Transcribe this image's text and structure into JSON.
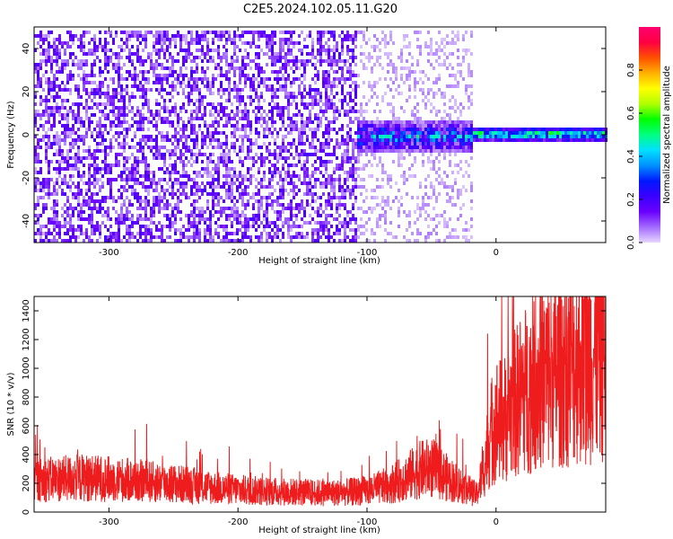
{
  "title": "C2E5.2024.102.05.11.G20",
  "colors": {
    "snr_line": "#ee1c1c",
    "axis": "#000000",
    "background": "#ffffff"
  },
  "chart_data": [
    {
      "type": "heatmap",
      "xlabel": "Height of straight line (km)",
      "ylabel": "Frequency (Hz)",
      "xlim": [
        -358,
        85
      ],
      "ylim": [
        -50,
        50
      ],
      "xticks": [
        -300,
        -200,
        -100,
        0
      ],
      "yticks": [
        -40,
        -20,
        0,
        20,
        40
      ],
      "colorbar": {
        "label": "Normalized spectral amplitude",
        "range": [
          0,
          1
        ],
        "ticks": [
          "0.0",
          "0.2",
          "0.4",
          "0.6",
          "0.8"
        ],
        "colormap": [
          "#e6d6ff",
          "#a46bff",
          "#6a00ff",
          "#3a00ff",
          "#0018ff",
          "#0090ff",
          "#00e0ff",
          "#00ff80",
          "#00ff00",
          "#b0ff00",
          "#ffff00",
          "#ffb000",
          "#ff5000",
          "#ff0040",
          "#ff0070"
        ]
      },
      "regions": [
        {
          "x_range": [
            -358,
            -108
          ],
          "f_range": [
            -50,
            50
          ],
          "description_level": "broadband",
          "amplitude": 0.08
        },
        {
          "x_range": [
            -108,
            -20
          ],
          "f_range": [
            -50,
            50
          ],
          "description_level": "sparse",
          "amplitude": 0.03
        },
        {
          "x_range": [
            -108,
            -20
          ],
          "f_range": [
            -7,
            8
          ],
          "description_level": "band",
          "amplitude": 0.3
        },
        {
          "x_range": [
            -20,
            85
          ],
          "f_range": [
            -2,
            4
          ],
          "description_level": "narrow-band",
          "amplitude": 0.5
        }
      ],
      "grid": false
    },
    {
      "type": "line",
      "xlabel": "Height of straight line (km)",
      "ylabel": "SNR (10 * v/v)",
      "xlim": [
        -358,
        85
      ],
      "ylim": [
        0,
        1500
      ],
      "xticks": [
        -300,
        -200,
        -100,
        0
      ],
      "yticks": [
        0,
        200,
        400,
        600,
        800,
        1000,
        1200,
        1400
      ],
      "series": [
        {
          "x": [
            -358,
            -340,
            -320,
            -300,
            -280,
            -260,
            -240,
            -220,
            -200,
            -180,
            -160,
            -140,
            -120,
            -100,
            -90,
            -80,
            -70,
            -60,
            -50,
            -40,
            -30,
            -20,
            -15,
            -10,
            -5,
            0,
            5,
            10,
            15,
            20,
            30,
            40,
            50,
            60,
            70,
            80,
            85
          ],
          "values": [
            220,
            230,
            240,
            230,
            220,
            205,
            190,
            170,
            155,
            145,
            140,
            135,
            135,
            150,
            170,
            200,
            240,
            290,
            310,
            250,
            200,
            150,
            120,
            280,
            520,
            650,
            630,
            700,
            760,
            830,
            900,
            950,
            990,
            1040,
            1060,
            1100,
            1130
          ]
        }
      ],
      "grid": false
    }
  ]
}
